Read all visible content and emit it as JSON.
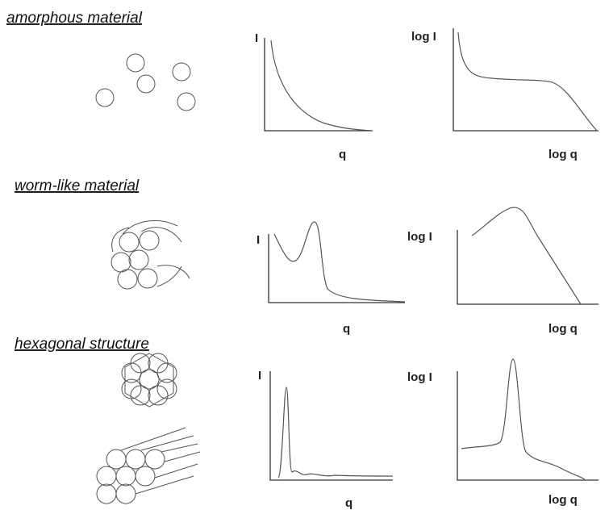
{
  "rows": [
    {
      "title": "amorphous material",
      "plots": [
        {
          "y_label": "I",
          "x_label": "q"
        },
        {
          "y_label": "log I",
          "x_label": "log q"
        }
      ]
    },
    {
      "title": "worm-like material",
      "plots": [
        {
          "y_label": "I",
          "x_label": "q"
        },
        {
          "y_label": "log I",
          "x_label": "log q"
        }
      ]
    },
    {
      "title": "hexagonal structure",
      "plots": [
        {
          "y_label": "I",
          "x_label": "q"
        },
        {
          "y_label": "log I",
          "x_label": "log q"
        }
      ]
    }
  ]
}
